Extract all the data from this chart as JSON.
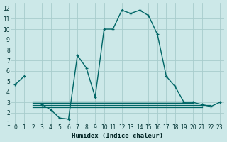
{
  "xlabel": "Humidex (Indice chaleur)",
  "bg_color": "#cce8e8",
  "grid_color": "#a8cccc",
  "line_color": "#006666",
  "xlim": [
    -0.5,
    23.5
  ],
  "ylim": [
    1,
    12.5
  ],
  "xticks": [
    0,
    1,
    2,
    3,
    4,
    5,
    6,
    7,
    8,
    9,
    10,
    11,
    12,
    13,
    14,
    15,
    16,
    17,
    18,
    19,
    20,
    21,
    22,
    23
  ],
  "yticks": [
    1,
    2,
    3,
    4,
    5,
    6,
    7,
    8,
    9,
    10,
    11,
    12
  ],
  "main_line_x": [
    0,
    1,
    3,
    4,
    5,
    6,
    7,
    8,
    9,
    10,
    11,
    12,
    13,
    14,
    15,
    16,
    17,
    18,
    19,
    20,
    21,
    22,
    23
  ],
  "main_line_y": [
    4.7,
    5.5,
    2.8,
    2.3,
    1.5,
    1.4,
    7.5,
    6.3,
    3.5,
    10.0,
    10.0,
    11.8,
    11.5,
    11.8,
    11.3,
    9.5,
    5.5,
    4.5,
    3.0,
    3.0,
    2.8,
    2.6,
    3.0
  ],
  "flat_lines": [
    {
      "x": [
        2,
        21
      ],
      "y": [
        2.55,
        2.55
      ]
    },
    {
      "x": [
        2,
        22
      ],
      "y": [
        2.75,
        2.75
      ]
    },
    {
      "x": [
        2,
        20
      ],
      "y": [
        2.95,
        2.95
      ]
    },
    {
      "x": [
        2,
        20
      ],
      "y": [
        3.1,
        3.1
      ]
    }
  ],
  "linewidth": 1.0,
  "marker_size": 3.5,
  "xlabel_fontsize": 6.5,
  "tick_fontsize": 5.5
}
